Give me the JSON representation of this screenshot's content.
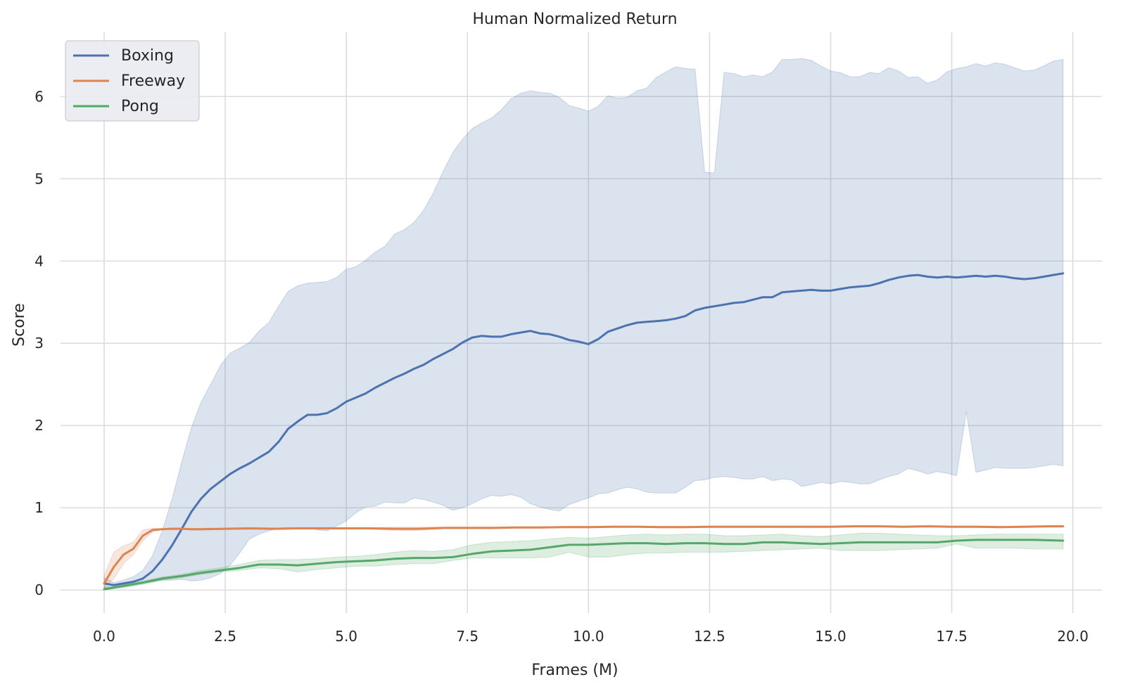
{
  "chart_data": {
    "type": "line",
    "title": "Human Normalized Return",
    "xlabel": "Frames (M)",
    "ylabel": "Score",
    "xlim": [
      -0.9,
      20.6
    ],
    "ylim": [
      -0.28,
      6.78
    ],
    "xticks": [
      0.0,
      2.5,
      5.0,
      7.5,
      10.0,
      12.5,
      15.0,
      17.5,
      20.0
    ],
    "xtick_labels": [
      "0.0",
      "2.5",
      "5.0",
      "7.5",
      "10.0",
      "12.5",
      "15.0",
      "17.5",
      "20.0"
    ],
    "yticks": [
      0,
      1,
      2,
      3,
      4,
      5,
      6
    ],
    "ytick_labels": [
      "0",
      "1",
      "2",
      "3",
      "4",
      "5",
      "6"
    ],
    "grid": true,
    "legend_position": "top-left",
    "series": [
      {
        "name": "Boxing",
        "color": "#4c72b0",
        "band_color": "#4c72b0",
        "x": [
          0.0,
          0.2,
          0.4,
          0.6,
          0.8,
          1.0,
          1.2,
          1.4,
          1.6,
          1.8,
          2.0,
          2.2,
          2.4,
          2.6,
          2.8,
          3.0,
          3.2,
          3.4,
          3.6,
          3.8,
          4.0,
          4.2,
          4.4,
          4.6,
          4.8,
          5.0,
          5.2,
          5.4,
          5.6,
          5.8,
          6.0,
          6.2,
          6.4,
          6.6,
          6.8,
          7.0,
          7.2,
          7.4,
          7.6,
          7.8,
          8.0,
          8.2,
          8.4,
          8.6,
          8.8,
          9.0,
          9.2,
          9.4,
          9.6,
          9.8,
          10.0,
          10.2,
          10.4,
          10.6,
          10.8,
          11.0,
          11.2,
          11.4,
          11.6,
          11.8,
          12.0,
          12.2,
          12.4,
          12.6,
          12.8,
          13.0,
          13.2,
          13.4,
          13.6,
          13.8,
          14.0,
          14.2,
          14.4,
          14.6,
          14.8,
          15.0,
          15.2,
          15.4,
          15.6,
          15.8,
          16.0,
          16.2,
          16.4,
          16.6,
          16.8,
          17.0,
          17.2,
          17.4,
          17.6,
          17.8,
          18.0,
          18.2,
          18.4,
          18.6,
          18.8,
          19.0,
          19.2,
          19.4,
          19.6,
          19.8
        ],
        "y": [
          0.08,
          0.06,
          0.08,
          0.1,
          0.14,
          0.23,
          0.37,
          0.54,
          0.74,
          0.95,
          1.11,
          1.23,
          1.32,
          1.41,
          1.48,
          1.54,
          1.61,
          1.68,
          1.8,
          1.96,
          2.05,
          2.13,
          2.13,
          2.15,
          2.21,
          2.29,
          2.34,
          2.39,
          2.46,
          2.52,
          2.58,
          2.63,
          2.69,
          2.74,
          2.81,
          2.87,
          2.93,
          3.01,
          3.07,
          3.09,
          3.08,
          3.08,
          3.11,
          3.13,
          3.15,
          3.12,
          3.11,
          3.08,
          3.04,
          3.02,
          2.99,
          3.05,
          3.14,
          3.18,
          3.22,
          3.25,
          3.26,
          3.27,
          3.28,
          3.3,
          3.33,
          3.4,
          3.43,
          3.45,
          3.47,
          3.49,
          3.5,
          3.53,
          3.56,
          3.56,
          3.62,
          3.63,
          3.64,
          3.65,
          3.64,
          3.64,
          3.66,
          3.68,
          3.69,
          3.7,
          3.73,
          3.77,
          3.8,
          3.82,
          3.83,
          3.81,
          3.8,
          3.81,
          3.8,
          3.81,
          3.82,
          3.81,
          3.82,
          3.81,
          3.79,
          3.78,
          3.79,
          3.81,
          3.83,
          3.85
        ],
        "lower": [
          0.03,
          0.03,
          0.04,
          0.06,
          0.08,
          0.1,
          0.12,
          0.12,
          0.13,
          0.11,
          0.12,
          0.15,
          0.2,
          0.3,
          0.45,
          0.62,
          0.68,
          0.72,
          0.75,
          0.76,
          0.75,
          0.76,
          0.73,
          0.72,
          0.78,
          0.84,
          0.94,
          1.01,
          1.02,
          1.07,
          1.06,
          1.06,
          1.12,
          1.1,
          1.07,
          1.03,
          0.97,
          1.0,
          1.05,
          1.11,
          1.15,
          1.14,
          1.16,
          1.13,
          1.05,
          1.01,
          0.98,
          0.96,
          1.04,
          1.08,
          1.12,
          1.17,
          1.18,
          1.22,
          1.25,
          1.23,
          1.19,
          1.18,
          1.18,
          1.18,
          1.25,
          1.33,
          1.34,
          1.37,
          1.38,
          1.37,
          1.35,
          1.35,
          1.38,
          1.33,
          1.35,
          1.34,
          1.26,
          1.28,
          1.31,
          1.29,
          1.32,
          1.31,
          1.29,
          1.29,
          1.34,
          1.38,
          1.41,
          1.48,
          1.45,
          1.41,
          1.44,
          1.42,
          1.39,
          2.17,
          1.43,
          1.46,
          1.49,
          1.48,
          1.48,
          1.48,
          1.49,
          1.51,
          1.53,
          1.51
        ],
        "upper": [
          0.15,
          0.09,
          0.12,
          0.16,
          0.24,
          0.42,
          0.72,
          1.1,
          1.55,
          1.97,
          2.28,
          2.5,
          2.73,
          2.88,
          2.94,
          3.01,
          3.15,
          3.25,
          3.45,
          3.63,
          3.7,
          3.73,
          3.74,
          3.75,
          3.8,
          3.9,
          3.93,
          4.01,
          4.11,
          4.18,
          4.33,
          4.38,
          4.47,
          4.62,
          4.83,
          5.09,
          5.32,
          5.48,
          5.61,
          5.68,
          5.74,
          5.84,
          5.97,
          6.04,
          6.07,
          6.05,
          6.04,
          5.99,
          5.89,
          5.86,
          5.82,
          5.88,
          6.01,
          5.98,
          5.99,
          6.07,
          6.1,
          6.23,
          6.3,
          6.36,
          6.34,
          6.33,
          5.08,
          5.07,
          6.29,
          6.28,
          6.24,
          6.26,
          6.24,
          6.3,
          6.45,
          6.45,
          6.46,
          6.44,
          6.37,
          6.31,
          6.29,
          6.24,
          6.24,
          6.29,
          6.28,
          6.35,
          6.31,
          6.23,
          6.24,
          6.16,
          6.2,
          6.3,
          6.34,
          6.36,
          6.4,
          6.37,
          6.41,
          6.39,
          6.35,
          6.31,
          6.32,
          6.37,
          6.43,
          6.45
        ]
      },
      {
        "name": "Freeway",
        "color": "#dd8452",
        "band_color": "#dd8452",
        "x": [
          0.0,
          0.2,
          0.4,
          0.6,
          0.8,
          1.0,
          1.2,
          1.4,
          1.6,
          1.8,
          2.0,
          2.5,
          3.0,
          3.5,
          4.0,
          4.5,
          5.0,
          5.5,
          6.0,
          6.5,
          7.0,
          7.5,
          8.0,
          8.5,
          9.0,
          9.5,
          10.0,
          10.5,
          11.0,
          11.5,
          12.0,
          12.5,
          13.0,
          13.5,
          14.0,
          14.5,
          15.0,
          15.5,
          16.0,
          16.5,
          17.0,
          17.5,
          18.0,
          18.5,
          19.0,
          19.5,
          19.8
        ],
        "y": [
          0.08,
          0.28,
          0.43,
          0.5,
          0.66,
          0.73,
          0.74,
          0.745,
          0.745,
          0.74,
          0.74,
          0.745,
          0.75,
          0.745,
          0.75,
          0.75,
          0.75,
          0.75,
          0.745,
          0.745,
          0.755,
          0.755,
          0.755,
          0.76,
          0.76,
          0.765,
          0.765,
          0.77,
          0.77,
          0.765,
          0.765,
          0.77,
          0.77,
          0.77,
          0.77,
          0.77,
          0.77,
          0.775,
          0.775,
          0.77,
          0.775,
          0.77,
          0.77,
          0.765,
          0.77,
          0.775,
          0.775
        ],
        "lower": [
          0.02,
          0.14,
          0.32,
          0.43,
          0.6,
          0.71,
          0.73,
          0.735,
          0.735,
          0.73,
          0.73,
          0.735,
          0.74,
          0.735,
          0.74,
          0.74,
          0.74,
          0.74,
          0.725,
          0.725,
          0.745,
          0.745,
          0.745,
          0.75,
          0.75,
          0.755,
          0.755,
          0.76,
          0.76,
          0.755,
          0.755,
          0.76,
          0.76,
          0.76,
          0.76,
          0.76,
          0.76,
          0.765,
          0.765,
          0.76,
          0.765,
          0.76,
          0.76,
          0.755,
          0.76,
          0.765,
          0.765
        ],
        "upper": [
          0.17,
          0.46,
          0.54,
          0.58,
          0.73,
          0.75,
          0.75,
          0.755,
          0.755,
          0.75,
          0.75,
          0.755,
          0.76,
          0.755,
          0.76,
          0.76,
          0.76,
          0.76,
          0.765,
          0.765,
          0.765,
          0.765,
          0.765,
          0.77,
          0.77,
          0.775,
          0.775,
          0.78,
          0.78,
          0.775,
          0.775,
          0.78,
          0.78,
          0.78,
          0.78,
          0.78,
          0.78,
          0.785,
          0.785,
          0.78,
          0.785,
          0.78,
          0.78,
          0.775,
          0.78,
          0.785,
          0.785
        ]
      },
      {
        "name": "Pong",
        "color": "#55a868",
        "band_color": "#55a868",
        "x": [
          0.0,
          0.4,
          0.8,
          1.2,
          1.6,
          2.0,
          2.4,
          2.8,
          3.2,
          3.6,
          4.0,
          4.4,
          4.8,
          5.2,
          5.6,
          6.0,
          6.4,
          6.8,
          7.2,
          7.6,
          8.0,
          8.4,
          8.8,
          9.2,
          9.6,
          10.0,
          10.4,
          10.8,
          11.2,
          11.6,
          12.0,
          12.4,
          12.8,
          13.2,
          13.6,
          14.0,
          14.4,
          14.8,
          15.2,
          15.6,
          16.0,
          16.4,
          16.8,
          17.2,
          17.6,
          18.0,
          18.4,
          18.8,
          19.2,
          19.8
        ],
        "y": [
          0.01,
          0.05,
          0.09,
          0.14,
          0.17,
          0.21,
          0.24,
          0.27,
          0.31,
          0.31,
          0.3,
          0.32,
          0.34,
          0.35,
          0.36,
          0.38,
          0.39,
          0.39,
          0.4,
          0.44,
          0.47,
          0.48,
          0.49,
          0.52,
          0.55,
          0.55,
          0.56,
          0.57,
          0.57,
          0.56,
          0.57,
          0.57,
          0.56,
          0.56,
          0.58,
          0.58,
          0.57,
          0.56,
          0.57,
          0.58,
          0.58,
          0.58,
          0.58,
          0.58,
          0.6,
          0.61,
          0.61,
          0.61,
          0.61,
          0.6
        ],
        "lower": [
          0.0,
          0.03,
          0.07,
          0.12,
          0.15,
          0.19,
          0.22,
          0.24,
          0.27,
          0.26,
          0.22,
          0.25,
          0.27,
          0.29,
          0.29,
          0.31,
          0.32,
          0.32,
          0.36,
          0.39,
          0.39,
          0.39,
          0.39,
          0.4,
          0.46,
          0.4,
          0.4,
          0.43,
          0.45,
          0.45,
          0.46,
          0.46,
          0.46,
          0.47,
          0.48,
          0.49,
          0.5,
          0.51,
          0.48,
          0.48,
          0.48,
          0.49,
          0.5,
          0.51,
          0.56,
          0.51,
          0.51,
          0.51,
          0.5,
          0.5
        ],
        "upper": [
          0.03,
          0.07,
          0.11,
          0.16,
          0.19,
          0.24,
          0.27,
          0.31,
          0.36,
          0.37,
          0.37,
          0.38,
          0.4,
          0.41,
          0.43,
          0.46,
          0.48,
          0.47,
          0.49,
          0.55,
          0.58,
          0.59,
          0.6,
          0.62,
          0.64,
          0.63,
          0.65,
          0.67,
          0.68,
          0.67,
          0.68,
          0.68,
          0.66,
          0.66,
          0.67,
          0.68,
          0.66,
          0.65,
          0.67,
          0.69,
          0.69,
          0.68,
          0.67,
          0.66,
          0.66,
          0.67,
          0.68,
          0.68,
          0.68,
          0.68
        ]
      }
    ]
  }
}
